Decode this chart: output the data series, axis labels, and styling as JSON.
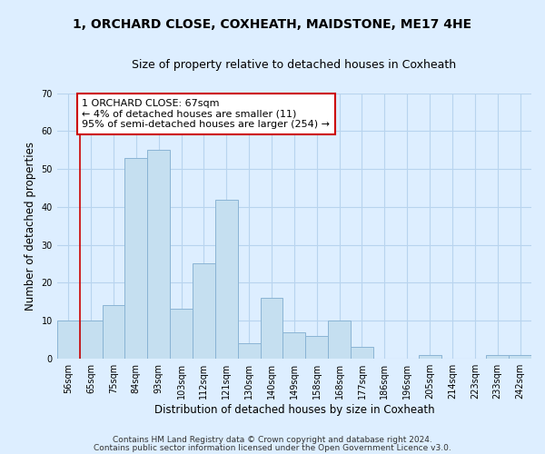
{
  "title": "1, ORCHARD CLOSE, COXHEATH, MAIDSTONE, ME17 4HE",
  "subtitle": "Size of property relative to detached houses in Coxheath",
  "xlabel": "Distribution of detached houses by size in Coxheath",
  "ylabel": "Number of detached properties",
  "bar_labels": [
    "56sqm",
    "65sqm",
    "75sqm",
    "84sqm",
    "93sqm",
    "103sqm",
    "112sqm",
    "121sqm",
    "130sqm",
    "140sqm",
    "149sqm",
    "158sqm",
    "168sqm",
    "177sqm",
    "186sqm",
    "196sqm",
    "205sqm",
    "214sqm",
    "223sqm",
    "233sqm",
    "242sqm"
  ],
  "bar_heights": [
    10,
    10,
    14,
    53,
    55,
    13,
    25,
    42,
    4,
    16,
    7,
    6,
    10,
    3,
    0,
    0,
    1,
    0,
    0,
    1,
    1
  ],
  "bar_color": "#c5dff0",
  "bar_edge_color": "#8ab4d4",
  "highlight_color": "#cc0000",
  "annotation_text": "1 ORCHARD CLOSE: 67sqm\n← 4% of detached houses are smaller (11)\n95% of semi-detached houses are larger (254) →",
  "annotation_box_edge_color": "#cc0000",
  "annotation_box_face_color": "#ffffff",
  "ylim": [
    0,
    70
  ],
  "yticks": [
    0,
    10,
    20,
    30,
    40,
    50,
    60,
    70
  ],
  "footnote1": "Contains HM Land Registry data © Crown copyright and database right 2024.",
  "footnote2": "Contains public sector information licensed under the Open Government Licence v3.0.",
  "bg_color": "#ddeeff",
  "plot_bg_color": "#ddeeff",
  "grid_color": "#b8d4ee",
  "title_fontsize": 10,
  "subtitle_fontsize": 9,
  "axis_label_fontsize": 8.5,
  "tick_fontsize": 7,
  "annotation_fontsize": 8,
  "footnote_fontsize": 6.5
}
